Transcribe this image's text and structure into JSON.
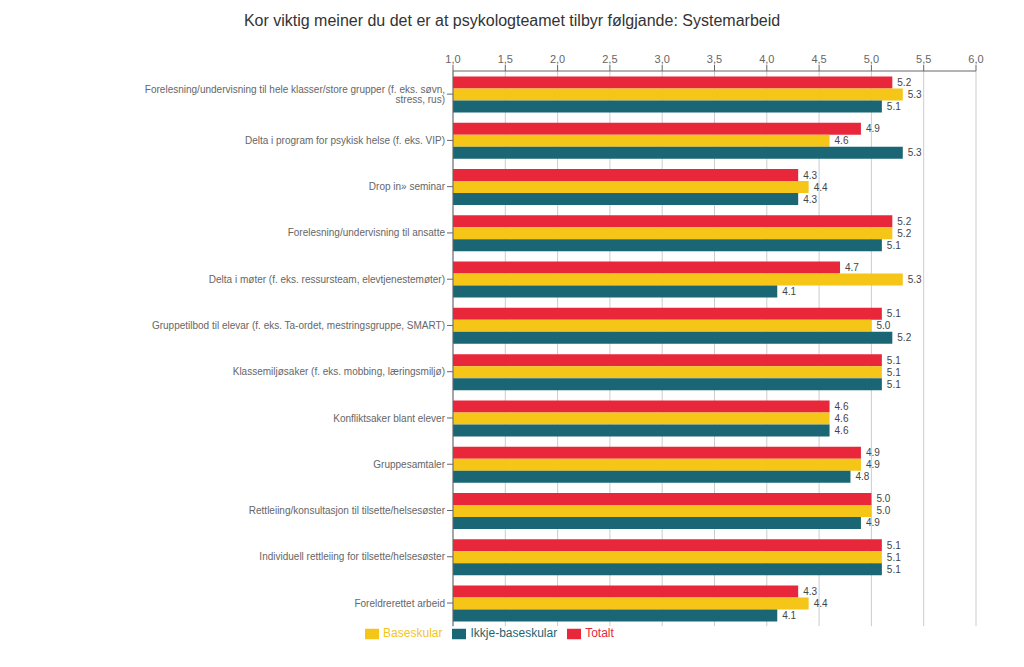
{
  "chart_data": {
    "type": "bar",
    "orientation": "horizontal",
    "title": "Kor viktig meiner du det er at psykologteamet tilbyr følgjande: Systemarbeid",
    "categories": [
      "Forelesning/undervisning til hele klasser/store grupper (f. eks. søvn, stress, rus)",
      "Delta i program for psykisk helse (f. eks. VIP)",
      "Drop in» seminar",
      "Forelesning/undervisning til ansatte",
      "Delta i møter (f. eks. ressursteam, elevtjenestemøter)",
      "Gruppetilbod til elevar (f. eks. Ta-ordet, mestringsgruppe, SMART)",
      "Klassemiljøsaker (f. eks. mobbing, læringsmiljø)",
      "Konfliktsaker blant elever",
      "Gruppesamtaler",
      "Rettleiing/konsultasjon til tilsette/helsesøster",
      "Individuell rettleiing for tilsette/helsesøster",
      "Foreldrerettet arbeid"
    ],
    "series": [
      {
        "name": "Totalt",
        "color": "#E8273B",
        "values": [
          5.2,
          4.9,
          4.3,
          5.2,
          4.7,
          5.1,
          5.1,
          4.6,
          4.9,
          5.0,
          5.1,
          4.3
        ],
        "value_labels": [
          "5.2",
          "4.9",
          "4.3",
          "5.2",
          "4.7",
          "5.1",
          "5.1",
          "4.6",
          "4.9",
          "5.0",
          "5.1",
          "4.3"
        ]
      },
      {
        "name": "Baseskular",
        "color": "#F5C518",
        "values": [
          5.3,
          4.6,
          4.4,
          5.2,
          5.3,
          5.0,
          5.1,
          4.6,
          4.9,
          5.0,
          5.1,
          4.4
        ],
        "value_labels": [
          "5.3",
          "4.6",
          "4.4",
          "5.2",
          "5.3",
          "5.0",
          "5.1",
          "4.6",
          "4.9",
          "5.0",
          "5.1",
          "4.4"
        ]
      },
      {
        "name": "Ikkje-baseskular",
        "color": "#1A6674",
        "values": [
          5.1,
          5.3,
          4.3,
          5.1,
          4.1,
          5.2,
          5.1,
          4.6,
          4.8,
          4.9,
          5.1,
          4.1
        ],
        "value_labels": [
          "5.1",
          "5.3",
          "4.3",
          "5.1",
          "4.1",
          "5.2",
          "5.1",
          "4.6",
          "4.8",
          "4.9",
          "5.1",
          "4.1"
        ]
      }
    ],
    "xlim": [
      1.0,
      6.0
    ],
    "xticks": [
      {
        "value": 1.0,
        "label": "1,0"
      },
      {
        "value": 1.5,
        "label": "1,5"
      },
      {
        "value": 2.0,
        "label": "2,0"
      },
      {
        "value": 2.5,
        "label": "2,5"
      },
      {
        "value": 3.0,
        "label": "3,0"
      },
      {
        "value": 3.5,
        "label": "3,5"
      },
      {
        "value": 4.0,
        "label": "4,0"
      },
      {
        "value": 4.5,
        "label": "4,5"
      },
      {
        "value": 5.0,
        "label": "5,0"
      },
      {
        "value": 5.5,
        "label": "5,5"
      },
      {
        "value": 6.0,
        "label": "6,0"
      }
    ],
    "grid": true,
    "data_labels": true,
    "legend": "bottom"
  }
}
